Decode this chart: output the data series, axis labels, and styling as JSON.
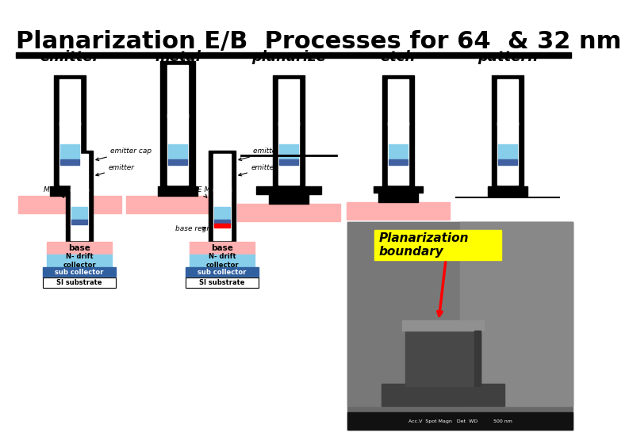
{
  "title": "Planarization E/B  Processes for 64  & 32 nm",
  "title_fontsize": 22,
  "title_fontweight": "bold",
  "bg_color": "#ffffff",
  "step_labels": [
    "emitter",
    "metal",
    "planarize",
    "etch",
    "pattern"
  ],
  "step_label_style": "italic",
  "step_label_fontsize": 13,
  "annotation_label_line1": "Planarization",
  "annotation_label_line2": "boundary",
  "annotation_bg": "#ffff00",
  "annotation_color": "#000000",
  "annotation_fontsize": 13,
  "arrow_color": "#ff0000",
  "pink_color": "#ffb0b0",
  "blue_light": "#87ceeb",
  "blue_dark": "#4060a0",
  "sub_collector_color": "#3060a0",
  "black": "#000000",
  "white": "#ffffff",
  "gray_sem": "#606060"
}
